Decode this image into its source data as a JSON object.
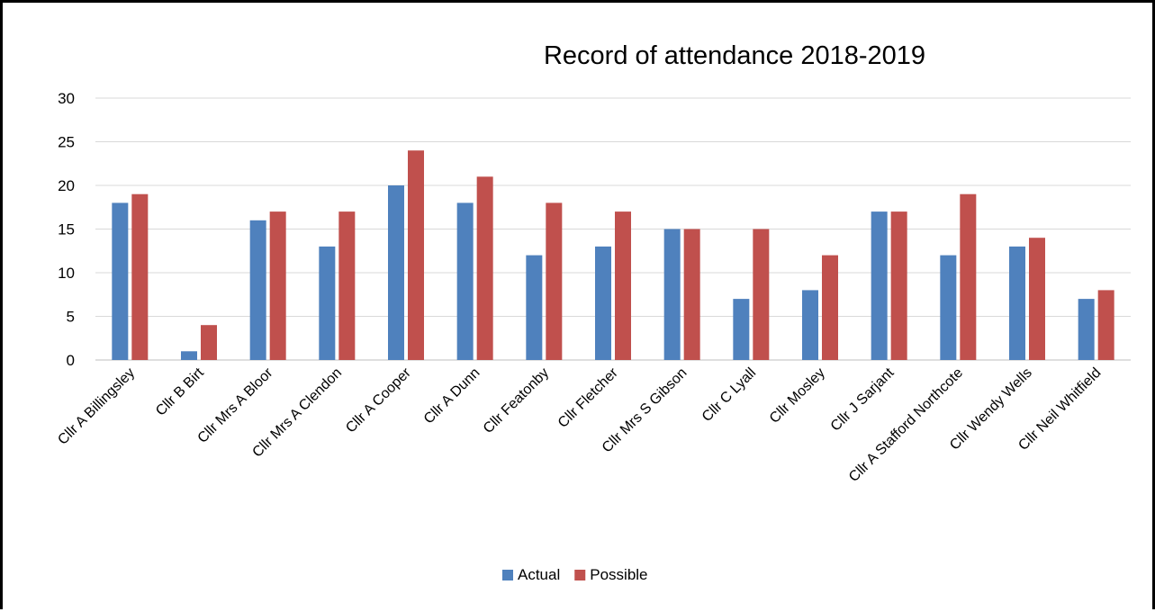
{
  "chart_data": {
    "type": "bar",
    "title": "Record of attendance 2018-2019",
    "xlabel": "",
    "ylabel": "",
    "ylim": [
      0,
      30
    ],
    "yticks": [
      0,
      5,
      10,
      15,
      20,
      25,
      30
    ],
    "grid": true,
    "legend_position": "bottom",
    "categories": [
      "Cllr A Billingsley",
      "Cllr B Birt",
      "Cllr Mrs A Bloor",
      "Cllr Mrs A Clendon",
      "Cllr A Cooper",
      "Cllr A Dunn",
      "Cllr Featonby",
      "Cllr Fletcher",
      "Cllr Mrs S Gibson",
      "Cllr C Lyall",
      "Cllr Mosley",
      "Cllr J Sarjant",
      "Cllr A Stafford Northcote",
      "Cllr Wendy Wells",
      "Cllr Neil Whitfield"
    ],
    "series": [
      {
        "name": "Actual",
        "color": "#4F81BD",
        "values": [
          18,
          1,
          16,
          13,
          20,
          18,
          12,
          13,
          15,
          7,
          8,
          17,
          12,
          13,
          7
        ]
      },
      {
        "name": "Possible",
        "color": "#C0504D",
        "values": [
          19,
          4,
          17,
          17,
          24,
          21,
          18,
          17,
          15,
          15,
          12,
          17,
          19,
          14,
          8
        ]
      }
    ]
  }
}
